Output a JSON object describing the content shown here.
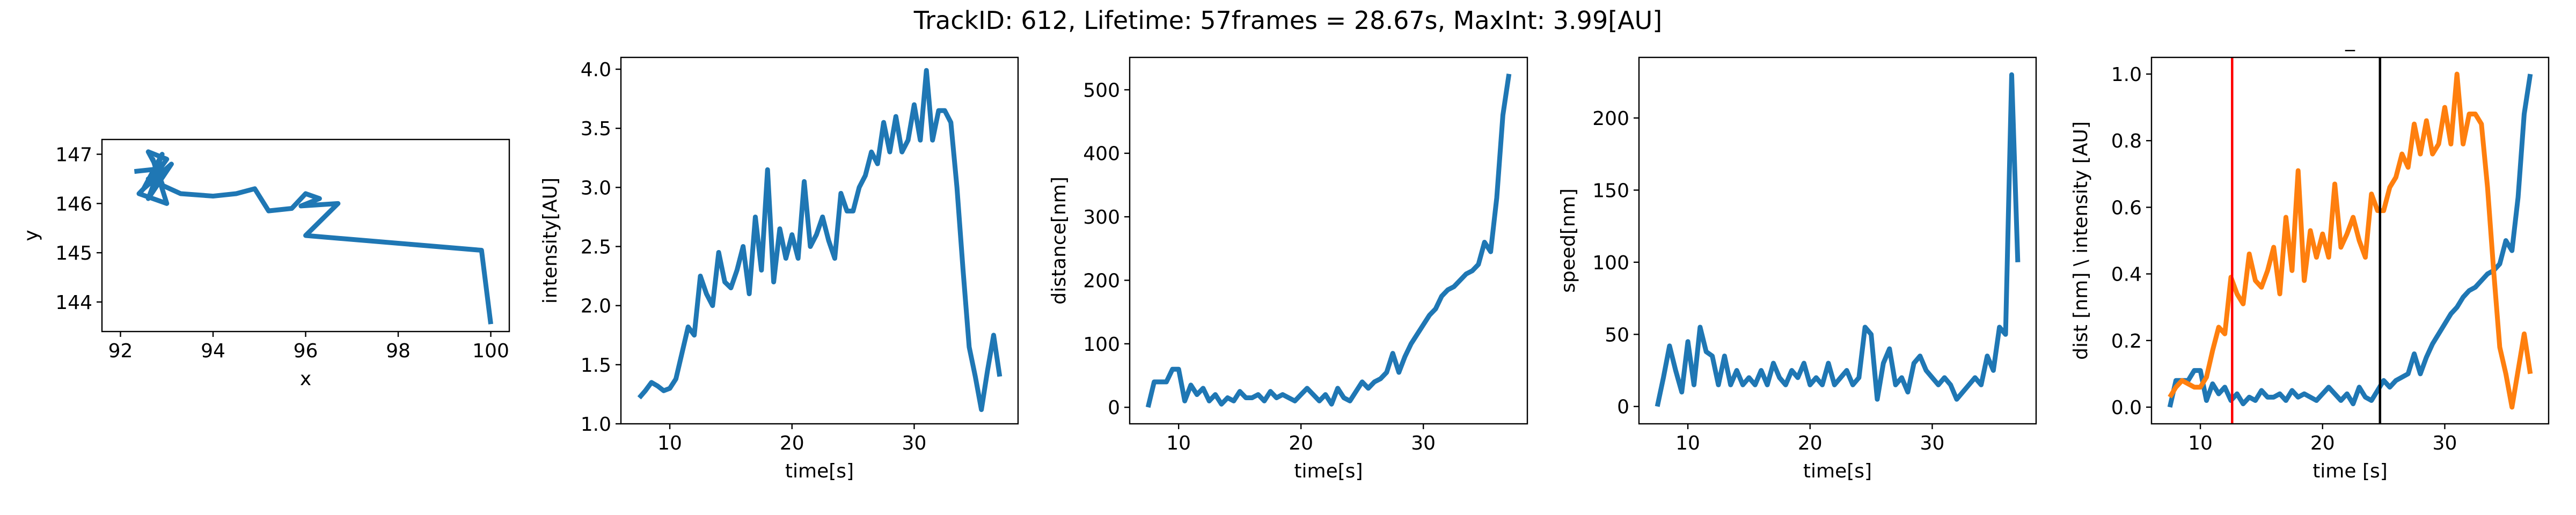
{
  "title": "TrackID: 612, Lifetime: 57frames = 28.67s, MaxInt: 3.99[AU]",
  "chart_data": [
    {
      "type": "line",
      "xlabel": "x",
      "ylabel": "y",
      "x": [
        92.3,
        92.8,
        92.6,
        93.0,
        92.7,
        92.9,
        92.5,
        93.1,
        92.6,
        92.8,
        92.4,
        93.0,
        92.7,
        92.9,
        92.6,
        93.3,
        94.0,
        94.5,
        94.9,
        95.2,
        95.7,
        96.0,
        96.3,
        95.9,
        96.7,
        96.0,
        99.8,
        100.0
      ],
      "series": [
        {
          "color": "#1f77b4",
          "values": [
            146.65,
            146.7,
            147.05,
            146.9,
            146.5,
            147.0,
            146.3,
            146.8,
            146.1,
            146.6,
            146.2,
            146.0,
            146.9,
            146.4,
            146.5,
            146.2,
            146.15,
            146.2,
            146.3,
            145.85,
            145.9,
            146.2,
            146.1,
            145.95,
            146.0,
            145.35,
            145.05,
            143.55
          ]
        }
      ],
      "xlim": [
        91.6,
        100.4
      ],
      "xticks": [
        92,
        94,
        96,
        98,
        100
      ],
      "ylim": [
        143.4,
        147.3
      ],
      "yticks": [
        144,
        145,
        146,
        147
      ]
    },
    {
      "type": "line",
      "xlabel": "time[s]",
      "ylabel": "intensity[AU]",
      "x": [
        7.5,
        8,
        8.5,
        9,
        9.5,
        10,
        10.5,
        11,
        11.5,
        12,
        12.5,
        13,
        13.5,
        14,
        14.5,
        15,
        15.5,
        16,
        16.5,
        17,
        17.5,
        18,
        18.5,
        19,
        19.5,
        20,
        20.5,
        21,
        21.5,
        22,
        22.5,
        23,
        23.5,
        24,
        24.5,
        25,
        25.5,
        26,
        26.5,
        27,
        27.5,
        28,
        28.5,
        29,
        29.5,
        30,
        30.5,
        31,
        31.5,
        32,
        32.5,
        33,
        33.5,
        34,
        34.5,
        35,
        35.5,
        36,
        36.5,
        37
      ],
      "series": [
        {
          "color": "#1f77b4",
          "values": [
            1.22,
            1.28,
            1.35,
            1.32,
            1.28,
            1.3,
            1.38,
            1.6,
            1.82,
            1.75,
            2.25,
            2.1,
            2.0,
            2.45,
            2.2,
            2.15,
            2.3,
            2.5,
            2.1,
            2.75,
            2.3,
            3.15,
            2.2,
            2.65,
            2.4,
            2.6,
            2.4,
            3.05,
            2.5,
            2.6,
            2.75,
            2.55,
            2.4,
            2.95,
            2.8,
            2.8,
            3.0,
            3.1,
            3.3,
            3.2,
            3.55,
            3.3,
            3.6,
            3.3,
            3.4,
            3.7,
            3.4,
            3.99,
            3.4,
            3.65,
            3.65,
            3.55,
            3.0,
            2.3,
            1.65,
            1.4,
            1.12,
            1.45,
            1.75,
            1.4
          ]
        }
      ],
      "xlim": [
        6,
        38.5
      ],
      "xticks": [
        10,
        20,
        30
      ],
      "ylim": [
        1.0,
        4.1
      ],
      "yticks": [
        {
          "value": 1.0,
          "label": "1.0"
        },
        {
          "value": 1.5,
          "label": "1.5"
        },
        {
          "value": 2.0,
          "label": "2.0"
        },
        {
          "value": 2.5,
          "label": "2.5"
        },
        {
          "value": 3.0,
          "label": "3.0"
        },
        {
          "value": 3.5,
          "label": "3.5"
        },
        {
          "value": 4.0,
          "label": "4.0"
        }
      ]
    },
    {
      "type": "line",
      "xlabel": "time[s]",
      "ylabel": "distance[nm]",
      "x": [
        7.5,
        8,
        8.5,
        9,
        9.5,
        10,
        10.5,
        11,
        11.5,
        12,
        12.5,
        13,
        13.5,
        14,
        14.5,
        15,
        15.5,
        16,
        16.5,
        17,
        17.5,
        18,
        18.5,
        19,
        19.5,
        20,
        20.5,
        21,
        21.5,
        22,
        22.5,
        23,
        23.5,
        24,
        24.5,
        25,
        25.5,
        26,
        26.5,
        27,
        27.5,
        28,
        28.5,
        29,
        29.5,
        30,
        30.5,
        31,
        31.5,
        32,
        32.5,
        33,
        33.5,
        34,
        34.5,
        35,
        35.5,
        36,
        36.5,
        37
      ],
      "series": [
        {
          "color": "#1f77b4",
          "values": [
            0,
            40,
            40,
            40,
            60,
            60,
            10,
            35,
            20,
            30,
            10,
            20,
            5,
            15,
            10,
            25,
            15,
            15,
            20,
            10,
            25,
            15,
            20,
            15,
            10,
            20,
            30,
            20,
            10,
            20,
            5,
            30,
            15,
            10,
            25,
            40,
            30,
            40,
            45,
            55,
            85,
            55,
            80,
            100,
            115,
            130,
            145,
            155,
            175,
            185,
            190,
            200,
            210,
            215,
            225,
            260,
            245,
            330,
            460,
            525
          ]
        }
      ],
      "xlim": [
        6,
        38.5
      ],
      "xticks": [
        10,
        20,
        30
      ],
      "ylim": [
        -26,
        551
      ],
      "yticks": [
        0,
        100,
        200,
        300,
        400,
        500
      ]
    },
    {
      "type": "line",
      "xlabel": "time[s]",
      "ylabel": "speed[nm]",
      "x": [
        7.5,
        8,
        8.5,
        9,
        9.5,
        10,
        10.5,
        11,
        11.5,
        12,
        12.5,
        13,
        13.5,
        14,
        14.5,
        15,
        15.5,
        16,
        16.5,
        17,
        17.5,
        18,
        18.5,
        19,
        19.5,
        20,
        20.5,
        21,
        21.5,
        22,
        22.5,
        23,
        23.5,
        24,
        24.5,
        25,
        25.5,
        26,
        26.5,
        27,
        27.5,
        28,
        28.5,
        29,
        29.5,
        30,
        30.5,
        31,
        31.5,
        32,
        32.5,
        33,
        33.5,
        34,
        34.5,
        35,
        35.5,
        36,
        36.5,
        37
      ],
      "series": [
        {
          "color": "#1f77b4",
          "values": [
            0,
            20,
            42,
            25,
            10,
            45,
            15,
            55,
            38,
            35,
            15,
            35,
            15,
            25,
            15,
            20,
            15,
            25,
            15,
            30,
            20,
            15,
            25,
            20,
            30,
            15,
            20,
            15,
            30,
            15,
            20,
            25,
            15,
            20,
            55,
            50,
            5,
            30,
            40,
            15,
            20,
            10,
            30,
            35,
            25,
            20,
            15,
            20,
            15,
            5,
            10,
            15,
            20,
            15,
            35,
            25,
            55,
            50,
            230,
            100
          ]
        }
      ],
      "xlim": [
        6,
        38.5
      ],
      "xticks": [
        10,
        20,
        30
      ],
      "ylim": [
        -12,
        242
      ],
      "yticks": [
        0,
        50,
        100,
        150,
        200
      ]
    },
    {
      "type": "line",
      "title": "_",
      "xlabel": "time [s]",
      "ylabel": "dist [nm] \\ intensity [AU]",
      "x": [
        7.5,
        8,
        8.5,
        9,
        9.5,
        10,
        10.5,
        11,
        11.5,
        12,
        12.5,
        13,
        13.5,
        14,
        14.5,
        15,
        15.5,
        16,
        16.5,
        17,
        17.5,
        18,
        18.5,
        19,
        19.5,
        20,
        20.5,
        21,
        21.5,
        22,
        22.5,
        23,
        23.5,
        24,
        24.5,
        25,
        25.5,
        26,
        26.5,
        27,
        27.5,
        28,
        28.5,
        29,
        29.5,
        30,
        30.5,
        31,
        31.5,
        32,
        32.5,
        33,
        33.5,
        34,
        34.5,
        35,
        35.5,
        36,
        36.5,
        37
      ],
      "series": [
        {
          "color": "#1f77b4",
          "values": [
            0,
            0.08,
            0.08,
            0.08,
            0.11,
            0.11,
            0.02,
            0.07,
            0.04,
            0.06,
            0.02,
            0.04,
            0.01,
            0.03,
            0.02,
            0.05,
            0.03,
            0.03,
            0.04,
            0.02,
            0.05,
            0.03,
            0.04,
            0.03,
            0.02,
            0.04,
            0.06,
            0.04,
            0.02,
            0.04,
            0.01,
            0.06,
            0.03,
            0.02,
            0.05,
            0.08,
            0.06,
            0.08,
            0.09,
            0.1,
            0.16,
            0.1,
            0.15,
            0.19,
            0.22,
            0.25,
            0.28,
            0.3,
            0.33,
            0.35,
            0.36,
            0.38,
            0.4,
            0.41,
            0.43,
            0.5,
            0.47,
            0.63,
            0.88,
            1.0
          ]
        },
        {
          "color": "#ff7f0e",
          "values": [
            0.03,
            0.06,
            0.08,
            0.07,
            0.06,
            0.06,
            0.09,
            0.17,
            0.24,
            0.22,
            0.39,
            0.34,
            0.31,
            0.46,
            0.38,
            0.36,
            0.41,
            0.48,
            0.34,
            0.57,
            0.41,
            0.71,
            0.38,
            0.53,
            0.45,
            0.52,
            0.45,
            0.67,
            0.48,
            0.52,
            0.57,
            0.5,
            0.45,
            0.64,
            0.59,
            0.59,
            0.66,
            0.69,
            0.76,
            0.72,
            0.85,
            0.76,
            0.86,
            0.76,
            0.79,
            0.9,
            0.79,
            1.0,
            0.79,
            0.88,
            0.88,
            0.85,
            0.66,
            0.41,
            0.18,
            0.1,
            0,
            0.11,
            0.22,
            0.1
          ]
        }
      ],
      "vlines": [
        {
          "x": 12.6,
          "color": "#ff0000"
        },
        {
          "x": 24.7,
          "color": "#000000"
        }
      ],
      "xlim": [
        6,
        38.5
      ],
      "xticks": [
        10,
        20,
        30
      ],
      "ylim": [
        -0.05,
        1.05
      ],
      "yticks": [
        {
          "value": 0.0,
          "label": "0.0"
        },
        {
          "value": 0.2,
          "label": "0.2"
        },
        {
          "value": 0.4,
          "label": "0.4"
        },
        {
          "value": 0.6,
          "label": "0.6"
        },
        {
          "value": 0.8,
          "label": "0.8"
        },
        {
          "value": 1.0,
          "label": "1.0"
        }
      ]
    }
  ]
}
